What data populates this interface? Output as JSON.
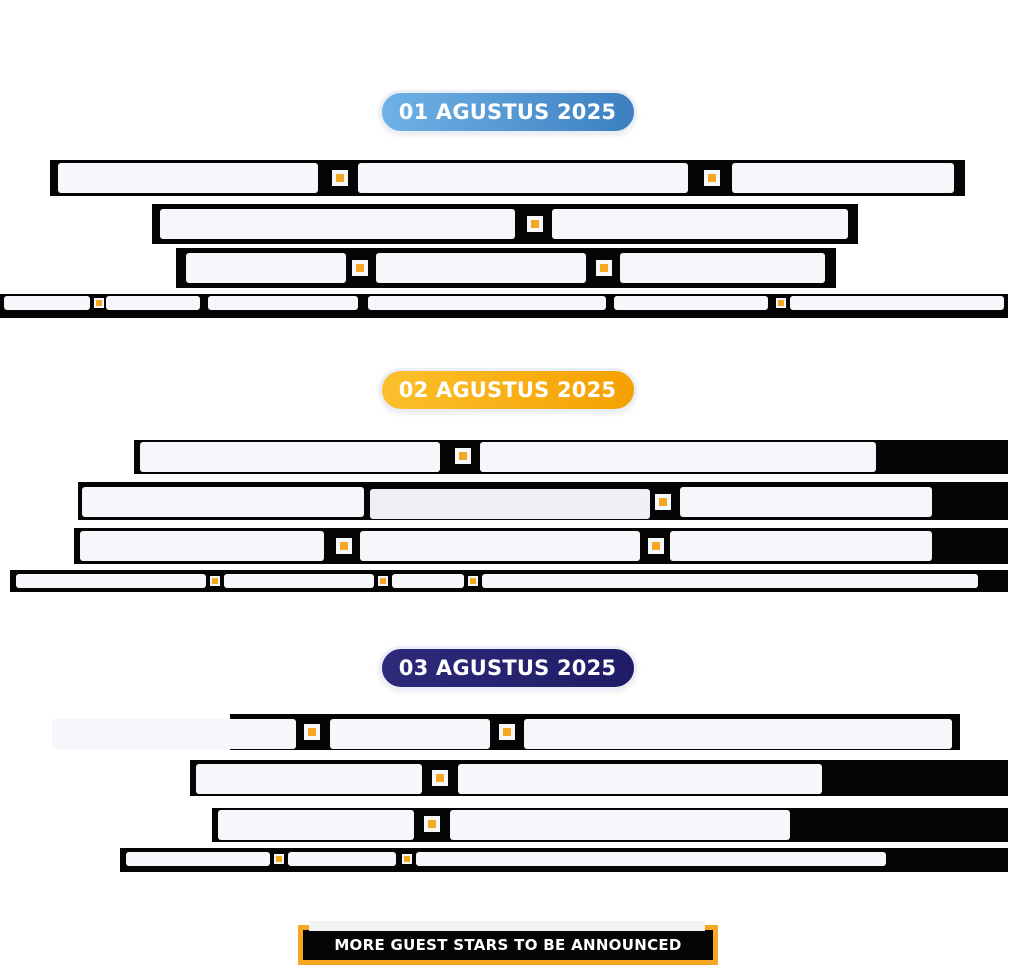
{
  "days": [
    {
      "date": "01 AGUSTUS 2025",
      "color": "#4a8fd0"
    },
    {
      "date": "02 AGUSTUS 2025",
      "color": "#f5b020"
    },
    {
      "date": "03 AGUSTUS 2025",
      "color": "#2d2a7a"
    }
  ],
  "colors": {
    "separator": "#f5a623",
    "block": "#050505",
    "blurred_text": "#f6f7fb"
  },
  "footer": {
    "label": "MORE GUEST STARS TO BE ANNOUNCED"
  }
}
